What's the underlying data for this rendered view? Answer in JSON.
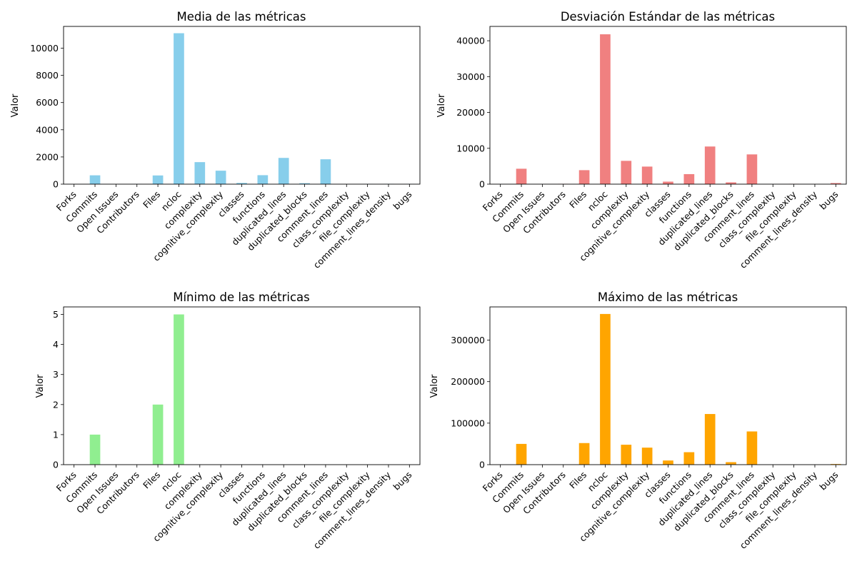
{
  "chart_data": [
    {
      "type": "bar",
      "title": "Media de las métricas",
      "xlabel": "",
      "ylabel": "Valor",
      "ylim": [
        0,
        11600
      ],
      "yticks": [
        0,
        2000,
        4000,
        6000,
        8000,
        10000
      ],
      "color": "#87CEEB",
      "grid": false,
      "categories": [
        "Forks",
        "Commits",
        "Open Issues",
        "Contributors",
        "Files",
        "ncloc",
        "complexity",
        "cognitive_complexity",
        "classes",
        "functions",
        "duplicated_lines",
        "duplicated_blocks",
        "comment_lines",
        "class_complexity",
        "file_complexity",
        "comment_lines_density",
        "bugs"
      ],
      "values": [
        0,
        650,
        0,
        20,
        640,
        11100,
        1620,
        990,
        90,
        660,
        1930,
        70,
        1830,
        0,
        20,
        25,
        20
      ]
    },
    {
      "type": "bar",
      "title": "Desviación Estándar de las métricas",
      "xlabel": "",
      "ylabel": "Valor",
      "ylim": [
        0,
        44000
      ],
      "yticks": [
        0,
        10000,
        20000,
        30000,
        40000
      ],
      "color": "#F08080",
      "grid": false,
      "categories": [
        "Forks",
        "Commits",
        "Open Issues",
        "Contributors",
        "Files",
        "ncloc",
        "complexity",
        "cognitive_complexity",
        "classes",
        "functions",
        "duplicated_lines",
        "duplicated_blocks",
        "comment_lines",
        "class_complexity",
        "file_complexity",
        "comment_lines_density",
        "bugs"
      ],
      "values": [
        0,
        4300,
        0,
        100,
        3900,
        41800,
        6500,
        4900,
        700,
        2800,
        10500,
        500,
        8300,
        0,
        100,
        50,
        300
      ]
    },
    {
      "type": "bar",
      "title": "Mínimo de las métricas",
      "xlabel": "",
      "ylabel": "Valor",
      "ylim": [
        0,
        5.25
      ],
      "yticks": [
        0,
        1,
        2,
        3,
        4,
        5
      ],
      "color": "#90EE90",
      "grid": false,
      "categories": [
        "Forks",
        "Commits",
        "Open Issues",
        "Contributors",
        "Files",
        "ncloc",
        "complexity",
        "cognitive_complexity",
        "classes",
        "functions",
        "duplicated_lines",
        "duplicated_blocks",
        "comment_lines",
        "class_complexity",
        "file_complexity",
        "comment_lines_density",
        "bugs"
      ],
      "values": [
        0,
        1,
        0,
        0,
        2,
        5,
        0,
        0,
        0,
        0,
        0,
        0,
        0,
        0,
        0,
        0,
        0
      ]
    },
    {
      "type": "bar",
      "title": "Máximo de las métricas",
      "xlabel": "",
      "ylabel": "Valor",
      "ylim": [
        0,
        380000
      ],
      "yticks": [
        0,
        100000,
        200000,
        300000
      ],
      "color": "#FFA500",
      "grid": false,
      "categories": [
        "Forks",
        "Commits",
        "Open Issues",
        "Contributors",
        "Files",
        "ncloc",
        "complexity",
        "cognitive_complexity",
        "classes",
        "functions",
        "duplicated_lines",
        "duplicated_blocks",
        "comment_lines",
        "class_complexity",
        "file_complexity",
        "comment_lines_density",
        "bugs"
      ],
      "values": [
        0,
        50000,
        0,
        0,
        52000,
        363000,
        48000,
        41000,
        10000,
        30000,
        122000,
        6000,
        80000,
        0,
        0,
        0,
        1500
      ]
    }
  ]
}
